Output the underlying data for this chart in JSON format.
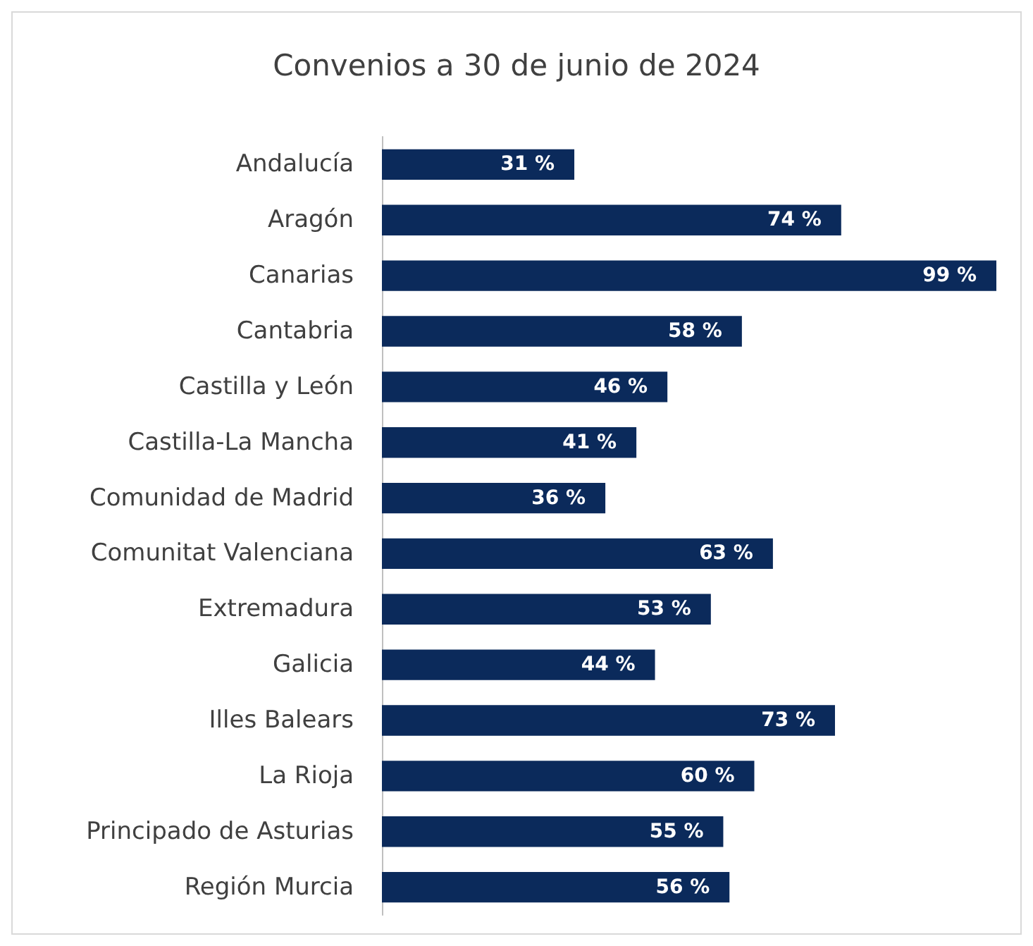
{
  "chart_data": {
    "type": "bar",
    "orientation": "horizontal",
    "title": "Convenios a 30 de junio de 2024",
    "categories": [
      "Andalucía",
      "Aragón",
      "Canarias",
      "Cantabria",
      "Castilla y León",
      "Castilla-La Mancha",
      "Comunidad de Madrid",
      "Comunitat Valenciana",
      "Extremadura",
      "Galicia",
      "Illes Balears",
      "La Rioja",
      "Principado de Asturias",
      "Región Murcia"
    ],
    "values": [
      31,
      74,
      99,
      58,
      46,
      41,
      36,
      63,
      53,
      44,
      73,
      60,
      55,
      56
    ],
    "value_labels": [
      "31 %",
      "74 %",
      "99 %",
      "58 %",
      "46 %",
      "41 %",
      "36 %",
      "63 %",
      "53 %",
      "44 %",
      "73 %",
      "60 %",
      "55 %",
      "56 %"
    ],
    "color": "#0b2a5b"
  }
}
